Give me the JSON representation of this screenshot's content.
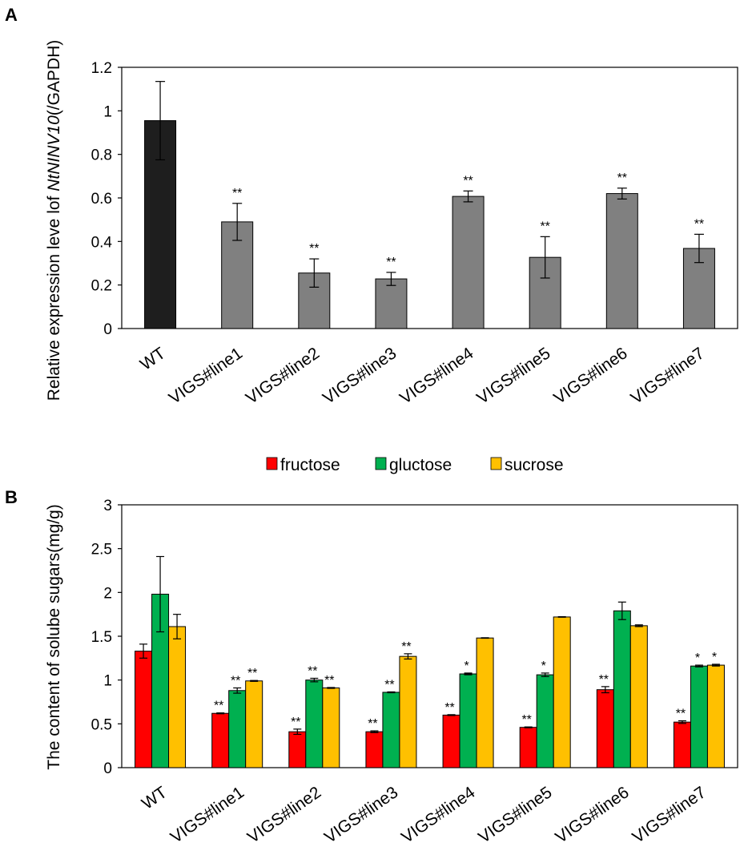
{
  "chart_data": [
    {
      "panel": "A",
      "type": "bar",
      "ylabel_parts": [
        "Relative expression leve lof ",
        "NtNINV10",
        "(/GAPDH)"
      ],
      "ylim": [
        0,
        1.2
      ],
      "yticks": [
        "0",
        "0.2",
        "0.4",
        "0.6",
        "0.8",
        "1",
        "1.2"
      ],
      "categories": [
        "WT",
        "VIGS#line1",
        "VIGS#line2",
        "VIGS#line3",
        "VIGS#line4",
        "VIGS#line5",
        "VIGS#line6",
        "VIGS#line7"
      ],
      "values": [
        0.955,
        0.49,
        0.255,
        0.228,
        0.607,
        0.327,
        0.62,
        0.368
      ],
      "errors": [
        0.18,
        0.085,
        0.065,
        0.03,
        0.025,
        0.095,
        0.025,
        0.065
      ],
      "significance": [
        "",
        "**",
        "**",
        "**",
        "**",
        "**",
        "**",
        "**"
      ],
      "colors": [
        "#1e1e1e",
        "#808080",
        "#808080",
        "#808080",
        "#808080",
        "#808080",
        "#808080",
        "#808080"
      ]
    },
    {
      "panel": "B",
      "type": "bar",
      "ylabel": "The content of solube sugars(mg/g)",
      "ylim": [
        0,
        3
      ],
      "yticks": [
        "0",
        "0.5",
        "1",
        "1.5",
        "2",
        "2.5",
        "3"
      ],
      "categories": [
        "WT",
        "VIGS#line1",
        "VIGS#line2",
        "VIGS#line3",
        "VIGS#line4",
        "VIGS#line5",
        "VIGS#line6",
        "VIGS#line7"
      ],
      "legend": [
        "fructose",
        "gluctose",
        "sucrose"
      ],
      "series": [
        {
          "name": "fructose",
          "color": "#ff0000",
          "values": [
            1.33,
            0.62,
            0.41,
            0.41,
            0.6,
            0.46,
            0.89,
            0.52
          ],
          "errors": [
            0.08,
            0.005,
            0.03,
            0.01,
            0.005,
            0.005,
            0.035,
            0.015
          ],
          "significance": [
            "",
            "**",
            "**",
            "**",
            "**",
            "**",
            "**",
            "**"
          ]
        },
        {
          "name": "gluctose",
          "color": "#00b050",
          "values": [
            1.98,
            0.88,
            1.0,
            0.86,
            1.07,
            1.06,
            1.79,
            1.16
          ],
          "errors": [
            0.43,
            0.03,
            0.02,
            0.005,
            0.01,
            0.02,
            0.1,
            0.01
          ],
          "significance": [
            "",
            "**",
            "**",
            "**",
            "*",
            "*",
            "",
            "*"
          ]
        },
        {
          "name": "sucrose",
          "color": "#ffc000",
          "values": [
            1.61,
            0.99,
            0.91,
            1.27,
            1.48,
            1.72,
            1.62,
            1.17
          ],
          "errors": [
            0.14,
            0.005,
            0.005,
            0.03,
            0.003,
            0.003,
            0.01,
            0.01
          ],
          "significance": [
            "",
            "**",
            "**",
            "**",
            "",
            "",
            "",
            "*"
          ]
        }
      ]
    }
  ],
  "panels": {
    "a_label": "A",
    "b_label": "B"
  }
}
